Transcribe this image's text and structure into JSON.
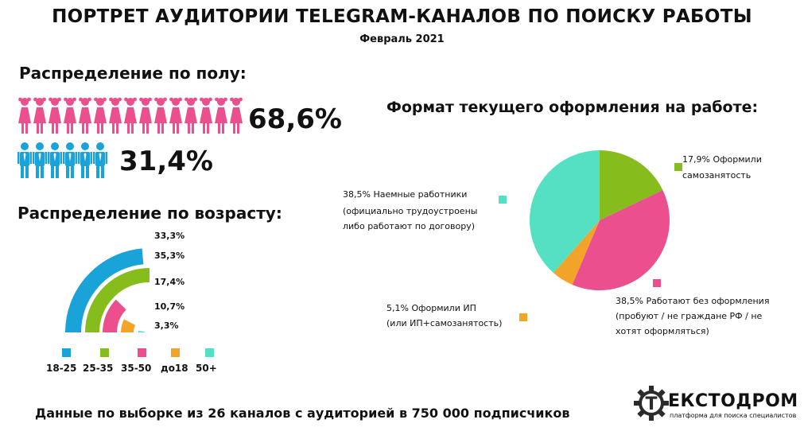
{
  "header": {
    "title": "ПОРТРЕТ АУДИТОРИИ TELEGRAM-КАНАЛОВ ПО ПОИСКУ РАБОТЫ",
    "subtitle": "Февраль 2021"
  },
  "gender": {
    "heading": "Распределение по полу:",
    "female": {
      "value": 68.6,
      "label": "68,6%",
      "icon_count": 15,
      "color": "#ec4f8e",
      "icon": "female-person-icon"
    },
    "male": {
      "value": 31.4,
      "label": "31,4%",
      "icon_count": 6,
      "color": "#1aa3d8",
      "icon": "male-person-icon"
    }
  },
  "age": {
    "heading": "Распределение по возрасту:"
  },
  "format": {
    "heading": "Формат текущего оформления на работе:"
  },
  "chart_data": [
    {
      "type": "radial-bar",
      "series": [
        {
          "category": "18-25",
          "value": 33.3,
          "label": "33,3%",
          "color": "#1aa3d8"
        },
        {
          "category": "25-35",
          "value": 35.3,
          "label": "35,3%",
          "color": "#86bd1c"
        },
        {
          "category": "35-50",
          "value": 17.4,
          "label": "17,4%",
          "color": "#ec4f8e"
        },
        {
          "category": "до18",
          "value": 10.7,
          "label": "10,7%",
          "color": "#f2a42a"
        },
        {
          "category": "50+",
          "value": 3.3,
          "label": "3,3%",
          "color": "#55e0c4"
        }
      ]
    },
    {
      "type": "pie",
      "slices": [
        {
          "value": 17.9,
          "label_lines": [
            "17,9% Оформили",
            "самозанятость"
          ],
          "color": "#86bd1c"
        },
        {
          "value": 38.5,
          "label_lines": [
            "38,5% Работают без оформления",
            "(пробуют / не граждане РФ / не",
            "хотят оформляться)"
          ],
          "color": "#ec4f8e"
        },
        {
          "value": 5.1,
          "label_lines": [
            "5,1% Оформили ИП",
            "(или ИП+самозанятость)"
          ],
          "color": "#f2a42a"
        },
        {
          "value": 38.5,
          "label_lines": [
            "38,5% Наемные работники",
            "(официально трудоустроены",
            "либо работают по договору)"
          ],
          "color": "#55e0c4"
        }
      ]
    }
  ],
  "footer": {
    "note": "Данные по выборке из 26 каналов с аудиторией в 750 000 подписчиков",
    "brand_name": "ЕКСТОДРОМ",
    "brand_letter": "Т",
    "brand_tagline": "платформа для поиска специалистов",
    "logo_icon": "gear-logo-icon"
  }
}
